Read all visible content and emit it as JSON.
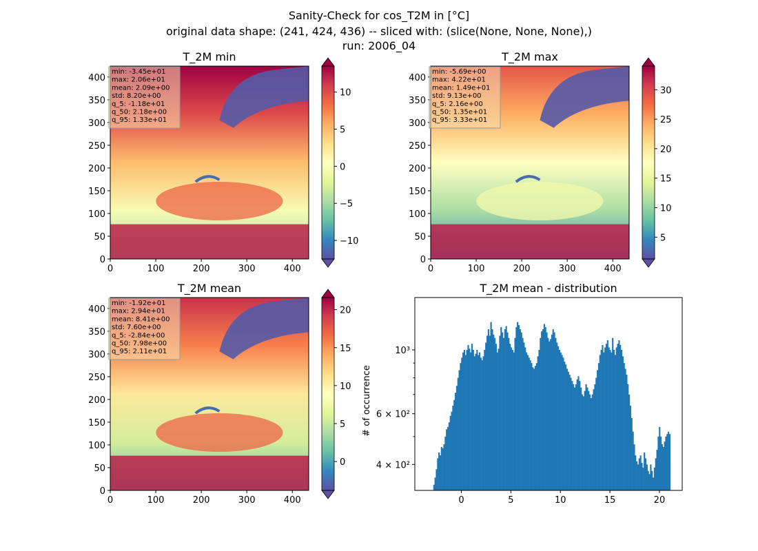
{
  "figure": {
    "title_line1": "Sanity-Check for cos_T2M in [°C]",
    "title_line2": "original data shape: (241, 424, 436) -- sliced with: (slice(None, None, None),)",
    "title_line3": "run: 2006_04"
  },
  "colors": {
    "histogram_bar": "#1f77b4",
    "colormap": "Spectral_r",
    "stats_box_bg": "#f5deb3",
    "water_cold": "#5e4fa2"
  },
  "chart_data": [
    {
      "type": "heatmap",
      "title": "T_2M min",
      "xlim": [
        0,
        436
      ],
      "ylim": [
        0,
        424
      ],
      "xticks": [
        0,
        100,
        200,
        300,
        400
      ],
      "yticks": [
        0,
        50,
        100,
        150,
        200,
        250,
        300,
        350,
        400
      ],
      "colorbar": {
        "range": [
          -12.5,
          13.5
        ],
        "ticks": [
          -10,
          -5,
          0,
          5,
          10
        ],
        "tick_labels": [
          "−10",
          "−5",
          "0",
          "5",
          "10"
        ],
        "extend": "both"
      },
      "stats": [
        "min: -3.45e+01",
        "max: 2.06e+01",
        "mean: 2.09e+00",
        "std: 8.20e+00",
        "q_5: -1.18e+01",
        "q_50: 2.18e+00",
        "q_95: 1.33e+01"
      ]
    },
    {
      "type": "heatmap",
      "title": "T_2M max",
      "xlim": [
        0,
        436
      ],
      "ylim": [
        0,
        424
      ],
      "xticks": [
        0,
        100,
        200,
        300,
        400
      ],
      "yticks": [
        0,
        50,
        100,
        150,
        200,
        250,
        300,
        350,
        400
      ],
      "colorbar": {
        "range": [
          1.3,
          34
        ],
        "ticks": [
          5,
          10,
          15,
          20,
          25,
          30
        ],
        "tick_labels": [
          "5",
          "10",
          "15",
          "20",
          "25",
          "30"
        ],
        "extend": "both"
      },
      "stats": [
        "min: -5.69e+00",
        "max: 4.22e+01",
        "mean: 1.49e+01",
        "std: 9.13e+00",
        "q_5: 2.16e+00",
        "q_50: 1.35e+01",
        "q_95: 3.33e+01"
      ]
    },
    {
      "type": "heatmap",
      "title": "T_2M mean",
      "xlim": [
        0,
        436
      ],
      "ylim": [
        0,
        424
      ],
      "xticks": [
        0,
        100,
        200,
        300,
        400
      ],
      "yticks": [
        0,
        50,
        100,
        150,
        200,
        250,
        300,
        350,
        400
      ],
      "colorbar": {
        "range": [
          -3.8,
          21.6
        ],
        "ticks": [
          0,
          5,
          10,
          15,
          20
        ],
        "tick_labels": [
          "0",
          "5",
          "10",
          "15",
          "20"
        ],
        "extend": "both"
      },
      "stats": [
        "min: -1.92e+01",
        "max: 2.94e+01",
        "mean: 8.41e+00",
        "std: 7.60e+00",
        "q_5: -2.84e+00",
        "q_50: 7.98e+00",
        "q_95: 2.11e+01"
      ]
    },
    {
      "type": "bar",
      "title": "T_2M mean - distribution",
      "xlabel": "",
      "ylabel": "# of occurrence",
      "yscale": "log",
      "xlim": [
        -4.7,
        22.3
      ],
      "ylim": [
        325,
        1520
      ],
      "xticks": [
        0,
        5,
        10,
        15,
        20
      ],
      "xtick_labels": [
        "0",
        "5",
        "10",
        "15",
        "20"
      ],
      "yticks": [
        400,
        600,
        1000
      ],
      "ytick_labels": [
        "4 × 10²",
        "6 × 10²",
        "10³"
      ],
      "bin_start": -2.84,
      "bin_end": 21.1,
      "values": [
        340,
        360,
        385,
        420,
        440,
        430,
        460,
        455,
        470,
        500,
        530,
        540,
        560,
        590,
        610,
        640,
        670,
        710,
        750,
        800,
        850,
        900,
        940,
        980,
        1000,
        960,
        1000,
        1040,
        1010,
        980,
        1050,
        1000,
        950,
        970,
        1000,
        960,
        980,
        940,
        920,
        950,
        1000,
        1060,
        1120,
        1180,
        1120,
        1250,
        1180,
        1130,
        1100,
        1050,
        980,
        1010,
        1120,
        1200,
        1150,
        1100,
        1180,
        1210,
        1150,
        1100,
        1050,
        1020,
        1000,
        980,
        1100,
        1200,
        1250,
        1220,
        1180,
        1150,
        1100,
        1060,
        1020,
        980,
        960,
        940,
        920,
        900,
        870,
        860,
        880,
        900,
        950,
        1000,
        1100,
        1160,
        1180,
        1230,
        1200,
        1150,
        1100,
        1070,
        1090,
        1130,
        1180,
        1150,
        1100,
        1060,
        1030,
        1000,
        980,
        960,
        940,
        910,
        890,
        860,
        840,
        820,
        800,
        780,
        760,
        740,
        760,
        790,
        810,
        780,
        740,
        700,
        690,
        720,
        760,
        740,
        720,
        700,
        680,
        700,
        730,
        760,
        800,
        850,
        900,
        960,
        1000,
        1040,
        980,
        1020,
        1050,
        1080,
        1020,
        1000,
        980,
        1100,
        1000,
        960,
        1020,
        1050,
        1080,
        1040,
        1000,
        950,
        900,
        860,
        820,
        760,
        700,
        640,
        580,
        520,
        470,
        430,
        410,
        400,
        420,
        430,
        405,
        390,
        440,
        420,
        400,
        380,
        370,
        400,
        380,
        360,
        390,
        420,
        450,
        500,
        540,
        500,
        470,
        460,
        480,
        500,
        510,
        520,
        510
      ]
    }
  ]
}
